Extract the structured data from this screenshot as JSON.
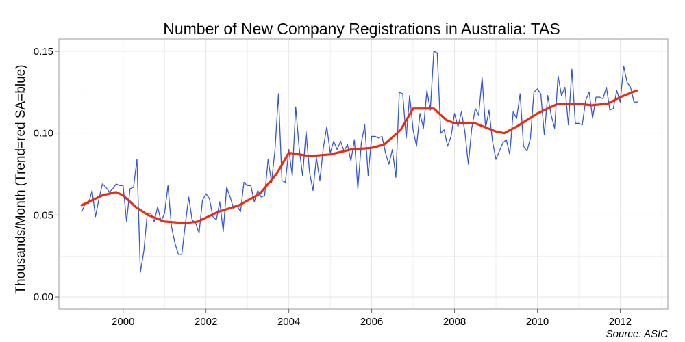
{
  "chart_data": {
    "type": "line",
    "title": "Number of New Company Registrations in Australia: TAS",
    "xlabel": "",
    "ylabel": "Thousands/Month (Trend=red SA=blue)",
    "source": "Source: ASIC",
    "xlim": [
      1998.45,
      2013.15
    ],
    "ylim": [
      -0.0075,
      0.1575
    ],
    "x_ticks": [
      2000,
      2002,
      2004,
      2006,
      2008,
      2010,
      2012
    ],
    "x_tick_labels": [
      "2000",
      "2002",
      "2004",
      "2006",
      "2008",
      "2010",
      "2012"
    ],
    "y_ticks": [
      0,
      0.05,
      0.1,
      0.15
    ],
    "y_tick_labels": [
      "0.00",
      "0.05",
      "0.10",
      "0.15"
    ],
    "grid": true,
    "legend": "none",
    "colors": {
      "sa": "#3355dd",
      "trend": "#ee2a0f",
      "grid": "#e6e6e6",
      "frame": "#999999"
    },
    "series": [
      {
        "name": "SA",
        "color": "#3355dd",
        "start": 1999.0,
        "step": 0.08333,
        "values": [
          0.052,
          0.057,
          0.057,
          0.065,
          0.049,
          0.06,
          0.069,
          0.067,
          0.064,
          0.066,
          0.069,
          0.068,
          0.068,
          0.046,
          0.066,
          0.067,
          0.084,
          0.015,
          0.028,
          0.051,
          0.051,
          0.046,
          0.055,
          0.046,
          0.051,
          0.068,
          0.043,
          0.033,
          0.026,
          0.026,
          0.044,
          0.061,
          0.047,
          0.045,
          0.039,
          0.059,
          0.063,
          0.06,
          0.049,
          0.047,
          0.058,
          0.04,
          0.067,
          0.061,
          0.054,
          0.056,
          0.052,
          0.07,
          0.068,
          0.068,
          0.058,
          0.065,
          0.061,
          0.062,
          0.084,
          0.07,
          0.09,
          0.124,
          0.071,
          0.07,
          0.09,
          0.074,
          0.116,
          0.091,
          0.074,
          0.101,
          0.076,
          0.065,
          0.085,
          0.071,
          0.091,
          0.104,
          0.088,
          0.095,
          0.09,
          0.095,
          0.089,
          0.093,
          0.083,
          0.096,
          0.066,
          0.094,
          0.105,
          0.074,
          0.098,
          0.098,
          0.097,
          0.098,
          0.088,
          0.081,
          0.09,
          0.073,
          0.125,
          0.124,
          0.097,
          0.123,
          0.102,
          0.092,
          0.112,
          0.103,
          0.126,
          0.114,
          0.15,
          0.149,
          0.1,
          0.102,
          0.092,
          0.098,
          0.112,
          0.104,
          0.113,
          0.101,
          0.081,
          0.103,
          0.115,
          0.111,
          0.134,
          0.103,
          0.114,
          0.095,
          0.084,
          0.089,
          0.094,
          0.096,
          0.087,
          0.113,
          0.109,
          0.124,
          0.092,
          0.089,
          0.097,
          0.125,
          0.127,
          0.124,
          0.099,
          0.123,
          0.111,
          0.103,
          0.135,
          0.123,
          0.128,
          0.105,
          0.139,
          0.106,
          0.106,
          0.105,
          0.12,
          0.125,
          0.109,
          0.122,
          0.122,
          0.121,
          0.128,
          0.114,
          0.115,
          0.126,
          0.119,
          0.141,
          0.131,
          0.128,
          0.119,
          0.119
        ]
      },
      {
        "name": "Trend",
        "color": "#ee2a0f",
        "x": [
          1999.0,
          1999.5,
          1999.83,
          2000.0,
          2000.3,
          2000.6,
          2001.0,
          2001.5,
          2001.8,
          2002.3,
          2002.8,
          2003.3,
          2003.7,
          2004.0,
          2004.5,
          2005.0,
          2005.5,
          2006.0,
          2006.3,
          2006.7,
          2007.0,
          2007.5,
          2007.8,
          2008.0,
          2008.5,
          2009.0,
          2009.2,
          2009.5,
          2010.0,
          2010.5,
          2011.0,
          2011.3,
          2011.7,
          2012.0,
          2012.4
        ],
        "values": [
          0.056,
          0.062,
          0.064,
          0.062,
          0.055,
          0.05,
          0.046,
          0.045,
          0.046,
          0.052,
          0.056,
          0.063,
          0.075,
          0.088,
          0.086,
          0.087,
          0.09,
          0.091,
          0.093,
          0.102,
          0.115,
          0.115,
          0.108,
          0.106,
          0.106,
          0.101,
          0.1,
          0.104,
          0.112,
          0.118,
          0.118,
          0.117,
          0.118,
          0.122,
          0.126
        ]
      }
    ]
  }
}
